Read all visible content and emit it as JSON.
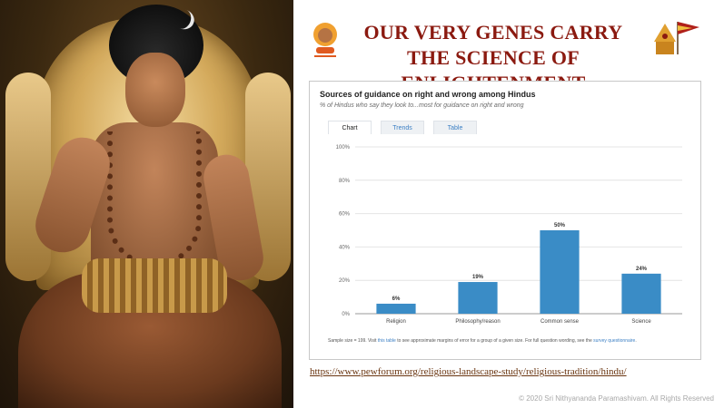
{
  "slide": {
    "title": "OUR VERY GENES CARRY THE SCIENCE OF ENLIGHTENMENT",
    "url": "https://www.pewforum.org/religious-landscape-study/religious-tradition/hindu/",
    "copyright": "© 2020 Sri Nithyananda Paramashivam. All Rights Reserved"
  },
  "embed": {
    "tabs": [
      {
        "label": "Chart",
        "active": true
      },
      {
        "label": "Trends",
        "active": false
      },
      {
        "label": "Table",
        "active": false
      }
    ],
    "footnote_pre": "Sample size = 199. Visit ",
    "footnote_link1": "this table",
    "footnote_mid": " to see approximate margins of error for a group of a given size. For full question wording, see the ",
    "footnote_link2": "survey questionnaire",
    "footnote_post": "."
  },
  "colors": {
    "title": "#8b1a10",
    "bar": "#3a8cc6",
    "link": "#3b7fc4"
  },
  "chart_data": {
    "type": "bar",
    "title": "Sources of guidance on right and wrong among Hindus",
    "subtitle": "% of Hindus who say they look to...most for guidance on right and wrong",
    "categories": [
      "Religion",
      "Philosophy/reason",
      "Common sense",
      "Science"
    ],
    "values": [
      6,
      19,
      50,
      24
    ],
    "value_labels": [
      "6%",
      "19%",
      "50%",
      "24%"
    ],
    "ylim": [
      0,
      100
    ],
    "yticks": [
      "0%",
      "20%",
      "40%",
      "60%",
      "80%",
      "100%"
    ],
    "grid": true
  }
}
